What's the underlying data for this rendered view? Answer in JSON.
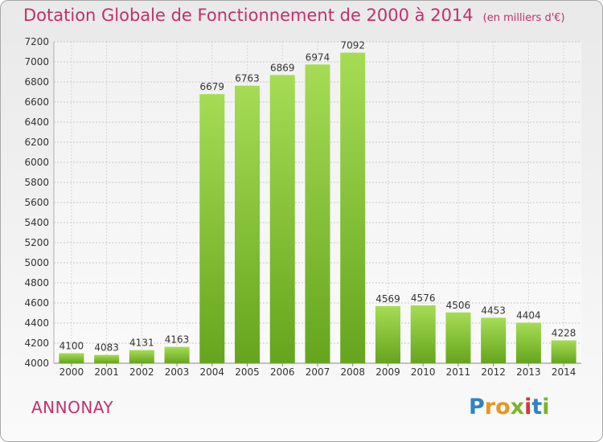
{
  "title": "Dotation Globale de Fonctionnement de 2000 à 2014",
  "unit": "(en milliers d'€)",
  "commune": "ANNONAY",
  "logo": {
    "text": "Proxiti",
    "letters": [
      "P",
      "r",
      "o",
      "x",
      "i",
      "t",
      "i"
    ],
    "colors": [
      "#2e83c5",
      "#e8961e",
      "#e8961e",
      "#7bb32e",
      "#d2363a",
      "#2e83c5",
      "#7bb32e"
    ]
  },
  "colors": {
    "bar": "#7dbf2e",
    "bar_light": "#a3d95a",
    "title": "#c0306e"
  },
  "chart_data": {
    "type": "bar",
    "categories": [
      "2000",
      "2001",
      "2002",
      "2003",
      "2004",
      "2005",
      "2006",
      "2007",
      "2008",
      "2009",
      "2010",
      "2011",
      "2012",
      "2013",
      "2014"
    ],
    "values": [
      4100,
      4083,
      4131,
      4163,
      6679,
      6763,
      6869,
      6974,
      7092,
      4569,
      4576,
      4506,
      4453,
      4404,
      4228
    ],
    "title": "Dotation Globale de Fonctionnement de 2000 à 2014",
    "ylim": [
      4000,
      7200
    ],
    "yticks": [
      4000,
      4200,
      4400,
      4600,
      4800,
      5000,
      5200,
      5400,
      5600,
      5800,
      6000,
      6200,
      6400,
      6600,
      6800,
      7000,
      7200
    ],
    "grid": true
  }
}
